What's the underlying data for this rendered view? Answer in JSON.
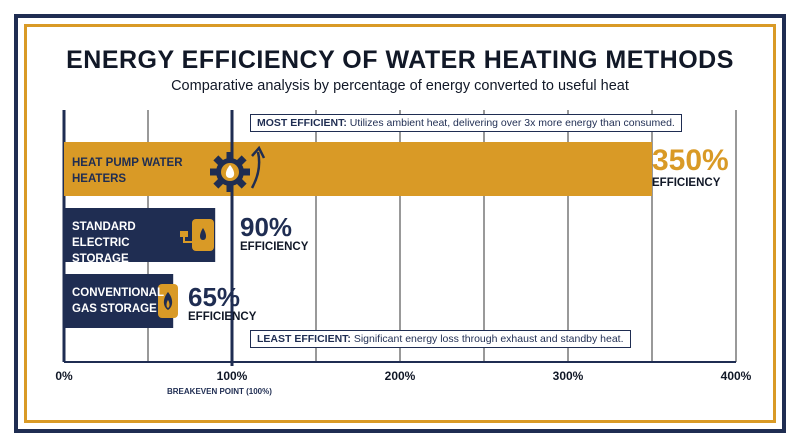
{
  "chart_data": {
    "type": "bar",
    "orientation": "horizontal",
    "title": "ENERGY EFFICIENCY OF WATER HEATING METHODS",
    "subtitle": "Comparative analysis by percentage of energy converted to useful heat",
    "categories": [
      "HEAT PUMP WATER HEATERS",
      "STANDARD ELECTRIC STORAGE",
      "CONVENTIONAL GAS STORAGE"
    ],
    "values": [
      350,
      90,
      65
    ],
    "value_labels": [
      "350%",
      "90%",
      "65%"
    ],
    "value_sublabel": "EFFICIENCY",
    "xlim": [
      0,
      400
    ],
    "x_ticks": [
      "0%",
      "100%",
      "200%",
      "300%",
      "400%"
    ],
    "grid": true,
    "reference_line": {
      "x": 100,
      "label": "BREAKEVEN POINT (100%)"
    },
    "annotations": [
      {
        "bold": "MOST EFFICIENT:",
        "text": " Utilizes ambient heat, delivering over 3x more energy than consumed."
      },
      {
        "bold": "LEAST EFFICIENT:",
        "text": " Significant energy loss through exhaust and standby heat."
      }
    ],
    "colors": {
      "gold": "#d99a26",
      "navy": "#1f2d52"
    },
    "icons": [
      "gear-droplet-icon",
      "electric-heater-icon",
      "gas-heater-icon"
    ]
  }
}
